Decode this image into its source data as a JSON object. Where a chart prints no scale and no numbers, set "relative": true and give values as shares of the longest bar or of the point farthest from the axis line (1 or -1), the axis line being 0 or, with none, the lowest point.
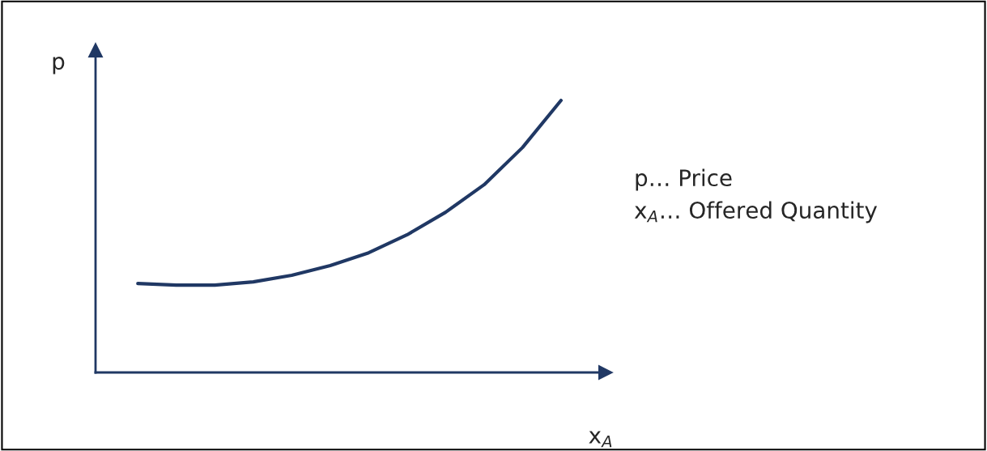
{
  "chart_data": {
    "type": "line",
    "relative": true,
    "xlabel": "x$_{A}$",
    "ylabel": "p",
    "categories": [
      null,
      null,
      null,
      null,
      null,
      null,
      null,
      null,
      null,
      null,
      null,
      null
    ],
    "series": [
      {
        "color": "#203864",
        "values": [
          0.327,
          0.321,
          0.321,
          0.333,
          0.357,
          0.393,
          0.44,
          0.506,
          0.589,
          0.69,
          0.827,
          1.0
        ]
      }
    ],
    "annotations": [
      "p… Price",
      "x$_{A}$… Offered Quantity"
    ],
    "legend": false,
    "marker": "none",
    "line_style": "solid"
  }
}
